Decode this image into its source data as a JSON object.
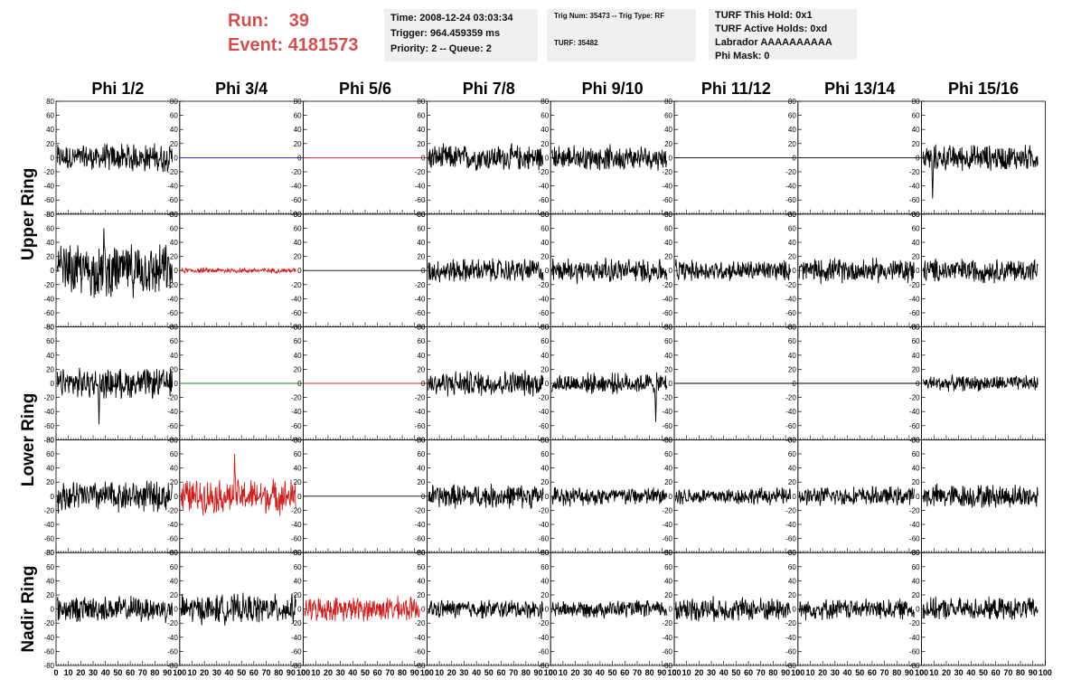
{
  "header": {
    "run_label": "Run:",
    "run_value": "39",
    "event_label": "Event:",
    "event_value": "4181573"
  },
  "info1": {
    "time": "Time: 2008-12-24 03:03:34",
    "trigger": "Trigger: 964.459359 ms",
    "priority": "Priority: 2 -- Queue: 2"
  },
  "info2": {
    "trig": "Trig Num: 35473 -- Trig Type: RF",
    "turf": "TURF: 35482"
  },
  "info3": {
    "this_hold": "TURF This Hold: 0x1",
    "active_holds": "TURF Active Holds: 0xd",
    "labrador": "Labrador AAAAAAAAAA",
    "phi_mask": "Phi Mask: 0"
  },
  "chart_data": {
    "type": "line",
    "columns": [
      "Phi 1/2",
      "Phi 3/4",
      "Phi 5/6",
      "Phi 7/8",
      "Phi 9/10",
      "Phi 11/12",
      "Phi 13/14",
      "Phi 15/16"
    ],
    "ring_labels": [
      {
        "text": "Upper Ring",
        "rows": [
          0,
          1
        ]
      },
      {
        "text": "Lower Ring",
        "rows": [
          2,
          3
        ]
      },
      {
        "text": "Nadir Ring",
        "rows": [
          4
        ]
      }
    ],
    "xlim": [
      0,
      100
    ],
    "ylim": [
      -80,
      80
    ],
    "xticks": [
      0,
      10,
      20,
      30,
      40,
      50,
      60,
      70,
      80,
      90,
      100
    ],
    "yticks": [
      -80,
      -60,
      -40,
      -20,
      0,
      20,
      40,
      60,
      80
    ],
    "colors": {
      "black": "#000000",
      "red": "#cc2020",
      "blue": "#1a1acc",
      "green": "#1a8a1a"
    },
    "panels": [
      [
        {
          "color": "black",
          "amp": 16,
          "spike": 0
        },
        {
          "color": "blue",
          "amp": 0,
          "spike": 0
        },
        {
          "color": "red",
          "amp": 0,
          "spike": 0
        },
        {
          "color": "black",
          "amp": 15,
          "spike": 0
        },
        {
          "color": "black",
          "amp": 14,
          "spike": 0
        },
        {
          "color": "black",
          "amp": 0,
          "spike": 0
        },
        {
          "color": "black",
          "amp": 0,
          "spike": 0
        },
        {
          "color": "black",
          "amp": 15,
          "spike": -58
        }
      ],
      [
        {
          "color": "black",
          "amp": 30,
          "spike": 60
        },
        {
          "color": "red",
          "amp": 3,
          "spike": 0
        },
        {
          "color": "black",
          "amp": 0,
          "spike": 0
        },
        {
          "color": "black",
          "amp": 14,
          "spike": 0
        },
        {
          "color": "black",
          "amp": 14,
          "spike": 0
        },
        {
          "color": "black",
          "amp": 12,
          "spike": 0
        },
        {
          "color": "black",
          "amp": 14,
          "spike": 0
        },
        {
          "color": "black",
          "amp": 14,
          "spike": 0
        }
      ],
      [
        {
          "color": "black",
          "amp": 17,
          "spike": -58
        },
        {
          "color": "green",
          "amp": 0,
          "spike": 0
        },
        {
          "color": "red",
          "amp": 0,
          "spike": 0
        },
        {
          "color": "black",
          "amp": 15,
          "spike": 0
        },
        {
          "color": "black",
          "amp": 12,
          "spike": -55
        },
        {
          "color": "black",
          "amp": 0,
          "spike": 0
        },
        {
          "color": "black",
          "amp": 0,
          "spike": 0
        },
        {
          "color": "black",
          "amp": 9,
          "spike": 0
        }
      ],
      [
        {
          "color": "black",
          "amp": 18,
          "spike": 0
        },
        {
          "color": "red",
          "amp": 20,
          "spike": 60
        },
        {
          "color": "black",
          "amp": 0,
          "spike": 0
        },
        {
          "color": "black",
          "amp": 14,
          "spike": 0
        },
        {
          "color": "black",
          "amp": 11,
          "spike": 0
        },
        {
          "color": "black",
          "amp": 10,
          "spike": 0
        },
        {
          "color": "black",
          "amp": 11,
          "spike": 0
        },
        {
          "color": "black",
          "amp": 14,
          "spike": 0
        }
      ],
      [
        {
          "color": "black",
          "amp": 15,
          "spike": 0
        },
        {
          "color": "black",
          "amp": 17,
          "spike": 0
        },
        {
          "color": "red",
          "amp": 14,
          "spike": 0
        },
        {
          "color": "black",
          "amp": 11,
          "spike": 0
        },
        {
          "color": "black",
          "amp": 10,
          "spike": 0
        },
        {
          "color": "black",
          "amp": 14,
          "spike": 0
        },
        {
          "color": "black",
          "amp": 12,
          "spike": 0
        },
        {
          "color": "black",
          "amp": 13,
          "spike": 0
        }
      ]
    ]
  }
}
